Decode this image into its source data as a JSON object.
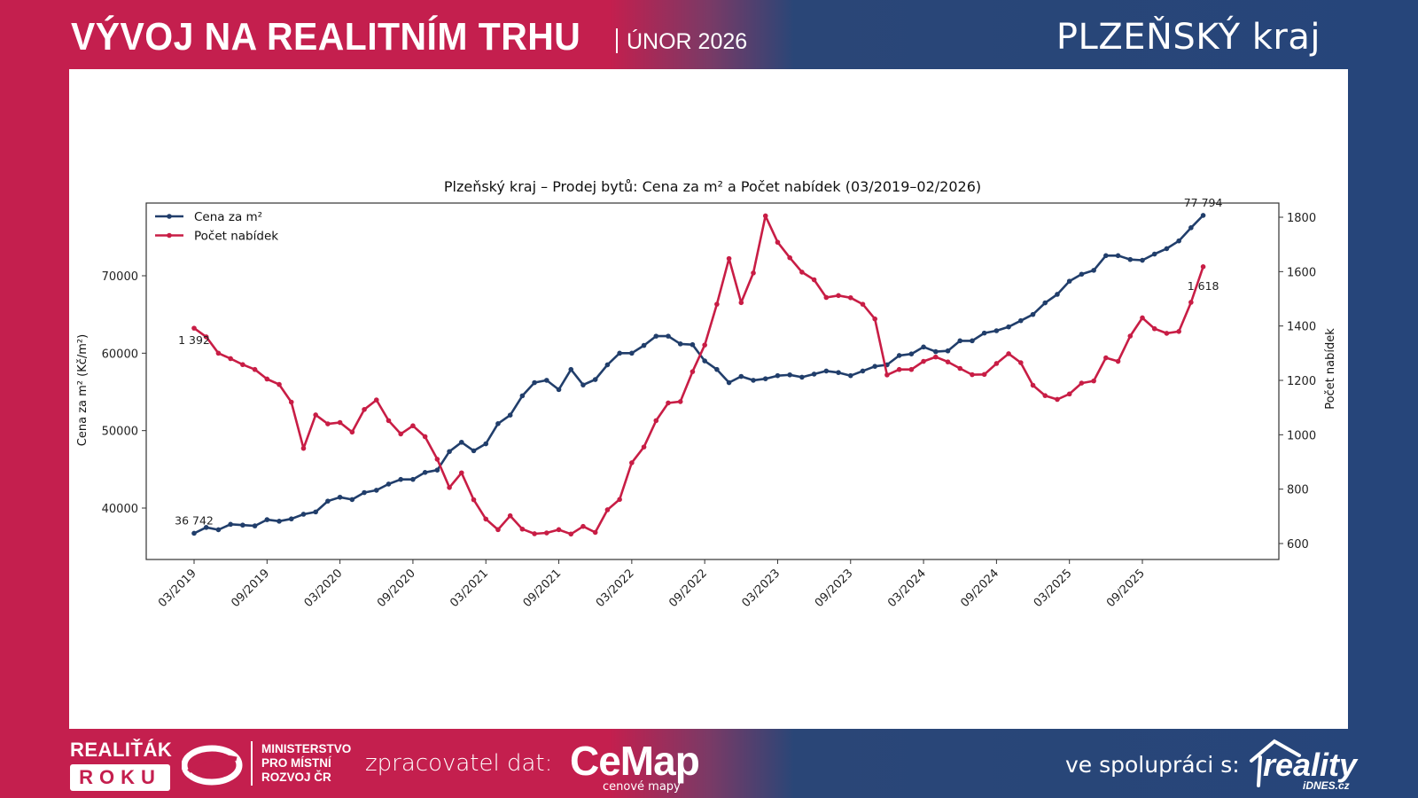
{
  "header": {
    "title": "VÝVOJ NA REALITNÍM TRHU",
    "date": "ÚNOR 2026",
    "region": "PLZEŇSKÝ kraj"
  },
  "footer": {
    "award_line1": "REALIŤÁK",
    "award_line2": "ROKU",
    "ministry": [
      "MINISTERSTVO",
      "PRO MÍSTNÍ",
      "ROZVOJ ČR"
    ],
    "processor_label": "zpracovatel dat:",
    "processor_logo": "CeMap",
    "processor_sub": "cenové mapy",
    "partner_label": "ve spolupráci s:",
    "partner_logo": "reality",
    "partner_sub": "iDNES.cz"
  },
  "colors": {
    "brand_red": "#c41f4e",
    "brand_blue": "#26457a",
    "series_price": "#213e6b",
    "series_count": "#c81d45"
  },
  "chart_data": {
    "type": "line",
    "title": "Plzeňský kraj – Prodej bytů: Cena za m² a Počet nabídek (03/2019–02/2026)",
    "xlabel": "",
    "ylabel": "Cena za m² (Kč/m²)",
    "y2label": "Počet nabídek",
    "ylim": [
      35000,
      80000
    ],
    "y2lim": [
      580,
      1865
    ],
    "yticks": [
      40000,
      50000,
      60000,
      70000
    ],
    "y2ticks": [
      600,
      800,
      1000,
      1200,
      1400,
      1600,
      1800
    ],
    "xticks": [
      "03/2019",
      "09/2019",
      "03/2020",
      "09/2020",
      "03/2021",
      "09/2021",
      "03/2022",
      "09/2022",
      "03/2023",
      "09/2023",
      "03/2024",
      "09/2024",
      "03/2025",
      "09/2025"
    ],
    "grid": false,
    "legend": "top-left",
    "x_start": "03/2019",
    "x_end": "02/2026",
    "series": [
      {
        "name": "Cena za m²",
        "axis": "left",
        "values": [
          36742,
          37500,
          37200,
          37900,
          37800,
          37700,
          38500,
          38300,
          38600,
          39200,
          39500,
          40900,
          41400,
          41100,
          42000,
          42300,
          43100,
          43700,
          43700,
          44600,
          44900,
          47300,
          48500,
          47400,
          48300,
          50900,
          52000,
          54500,
          56200,
          56500,
          55300,
          57900,
          55900,
          56600,
          58500,
          60000,
          60000,
          61000,
          62200,
          62200,
          61200,
          61100,
          59000,
          57900,
          56200,
          57000,
          56500,
          56700,
          57100,
          57200,
          56900,
          57300,
          57700,
          57500,
          57100,
          57700,
          58300,
          58500,
          59700,
          59900,
          60800,
          60200,
          60300,
          61600,
          61600,
          62600,
          62900,
          63400,
          64200,
          65000,
          66500,
          67600,
          69300,
          70200,
          70700,
          72600,
          72600,
          72100,
          72000,
          72800,
          73500,
          74500,
          76200,
          77794
        ]
      },
      {
        "name": "Počet nabídek",
        "axis": "right",
        "values": [
          1392,
          1360,
          1300,
          1280,
          1258,
          1240,
          1205,
          1185,
          1120,
          950,
          1073,
          1040,
          1045,
          1010,
          1093,
          1128,
          1052,
          1003,
          1033,
          993,
          910,
          806,
          860,
          761,
          690,
          651,
          702,
          653,
          636,
          639,
          651,
          635,
          663,
          641,
          724,
          762,
          897,
          955,
          1052,
          1117,
          1122,
          1232,
          1330,
          1480,
          1648,
          1486,
          1595,
          1805,
          1708,
          1651,
          1598,
          1570,
          1505,
          1512,
          1504,
          1480,
          1426,
          1220,
          1240,
          1240,
          1270,
          1286,
          1268,
          1244,
          1221,
          1222,
          1262,
          1298,
          1265,
          1182,
          1144,
          1130,
          1150,
          1190,
          1198,
          1283,
          1270,
          1363,
          1430,
          1390,
          1373,
          1380,
          1487,
          1618
        ]
      }
    ],
    "annotations": [
      {
        "series": "Cena za m²",
        "point": "first",
        "text": "36 742"
      },
      {
        "series": "Cena za m²",
        "point": "last",
        "text": "77 794"
      },
      {
        "series": "Počet nabídek",
        "point": "first",
        "text": "1 392"
      },
      {
        "series": "Počet nabídek",
        "point": "last",
        "text": "1 618"
      }
    ]
  }
}
